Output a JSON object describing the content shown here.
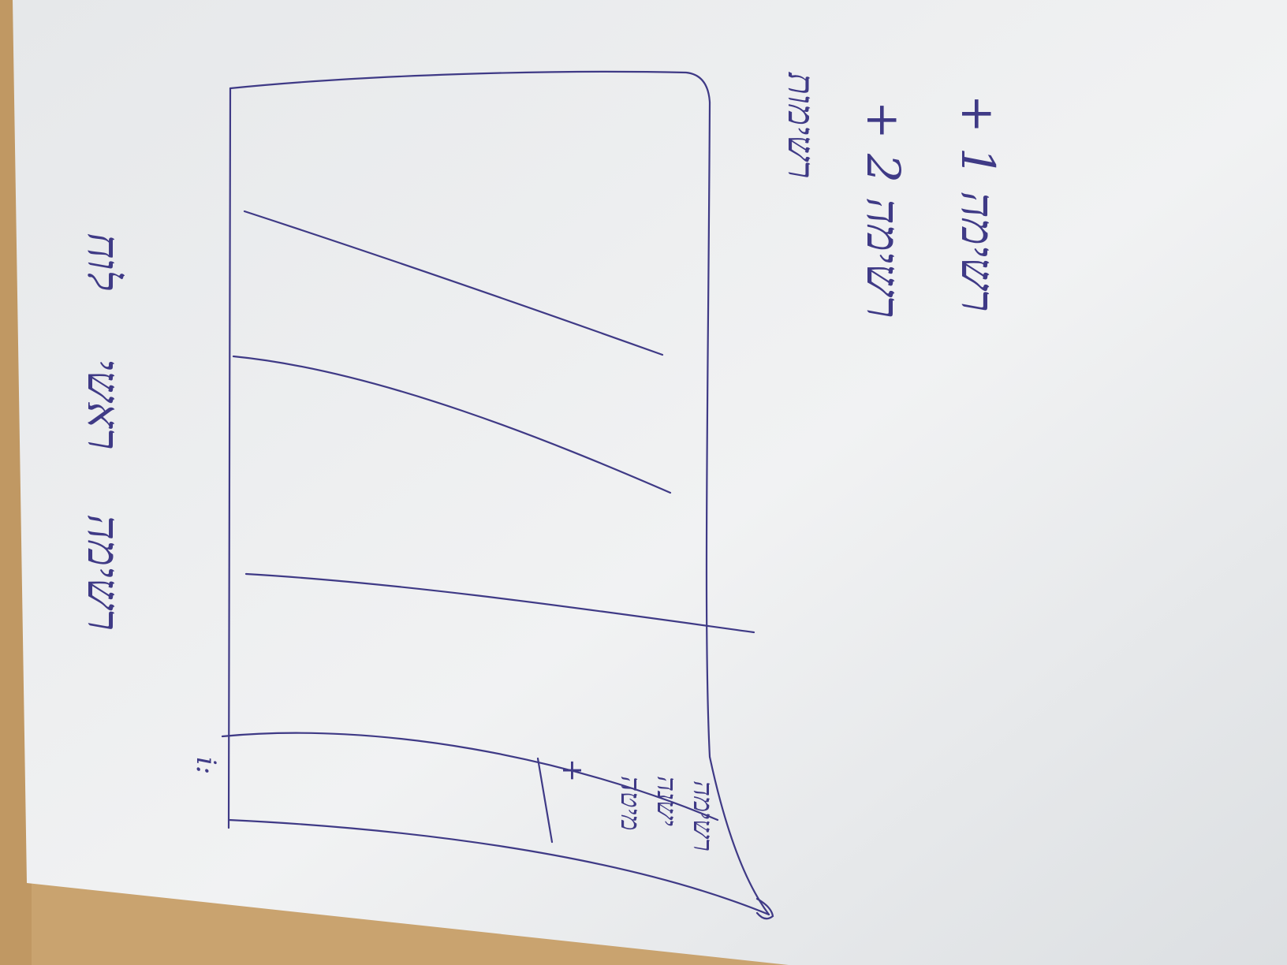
{
  "colors": {
    "table": "#c9a36f",
    "paper": "#eef0f2",
    "ink": "#3f3a86"
  },
  "note": {
    "line1": "+ רשימה 1",
    "line2": "+ רשימה 2",
    "line3": "רשימות",
    "add_plus": "+",
    "header_left": "לוח",
    "header_mid": "ראשי",
    "header_right": "רשימה",
    "side_text_1": "רשימה",
    "side_text_2": "ישנה",
    "side_text_3": "מיטה",
    "corner_mark": "i:",
    "item_plus": "+"
  }
}
